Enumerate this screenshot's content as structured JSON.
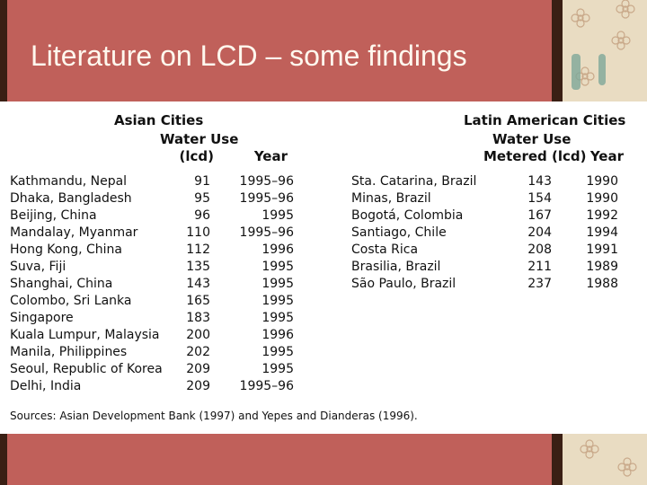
{
  "slide": {
    "title": "Literature on LCD – some findings"
  },
  "asian": {
    "header_city": "Asian Cities",
    "header_water_use_1": "Water Use",
    "header_water_use_2": "(lcd)",
    "header_year": "Year",
    "rows": [
      {
        "city": "Kathmandu, Nepal",
        "lcd": "91",
        "year": "1995–96"
      },
      {
        "city": "Dhaka, Bangladesh",
        "lcd": "95",
        "year": "1995–96"
      },
      {
        "city": "Beijing, China",
        "lcd": "96",
        "year": "1995"
      },
      {
        "city": "Mandalay, Myanmar",
        "lcd": "110",
        "year": "1995–96"
      },
      {
        "city": "Hong Kong, China",
        "lcd": "112",
        "year": "1996"
      },
      {
        "city": "Suva, Fiji",
        "lcd": "135",
        "year": "1995"
      },
      {
        "city": "Shanghai, China",
        "lcd": "143",
        "year": "1995"
      },
      {
        "city": "Colombo, Sri Lanka",
        "lcd": "165",
        "year": "1995"
      },
      {
        "city": "Singapore",
        "lcd": "183",
        "year": "1995"
      },
      {
        "city": "Kuala Lumpur, Malaysia",
        "lcd": "200",
        "year": "1996"
      },
      {
        "city": "Manila, Philippines",
        "lcd": "202",
        "year": "1995"
      },
      {
        "city": "Seoul, Republic of Korea",
        "lcd": "209",
        "year": "1995"
      },
      {
        "city": "Delhi, India",
        "lcd": "209",
        "year": "1995–96"
      }
    ]
  },
  "latin": {
    "header_city": "Latin American Cities",
    "header_water_use_1": "Water Use",
    "header_water_use_2": "Metered (lcd)",
    "header_year": "Year",
    "rows": [
      {
        "city": "Sta. Catarina, Brazil",
        "lcd": "143",
        "year": "1990"
      },
      {
        "city": "Minas, Brazil",
        "lcd": "154",
        "year": "1990"
      },
      {
        "city": "Bogotá, Colombia",
        "lcd": "167",
        "year": "1992"
      },
      {
        "city": "Santiago, Chile",
        "lcd": "204",
        "year": "1994"
      },
      {
        "city": "Costa Rica",
        "lcd": "208",
        "year": "1991"
      },
      {
        "city": "Brasilia, Brazil",
        "lcd": "211",
        "year": "1989"
      },
      {
        "city": "São Paulo, Brazil",
        "lcd": "237",
        "year": "1988"
      }
    ]
  },
  "sources": "Sources: Asian Development Bank (1997) and Yepes and Dianderas (1996).",
  "theme": {
    "band_color": "#c0605a",
    "dark_color": "#3a1f14",
    "pattern_bg": "#e9dcc2",
    "pattern_motif": "flower-icon"
  }
}
